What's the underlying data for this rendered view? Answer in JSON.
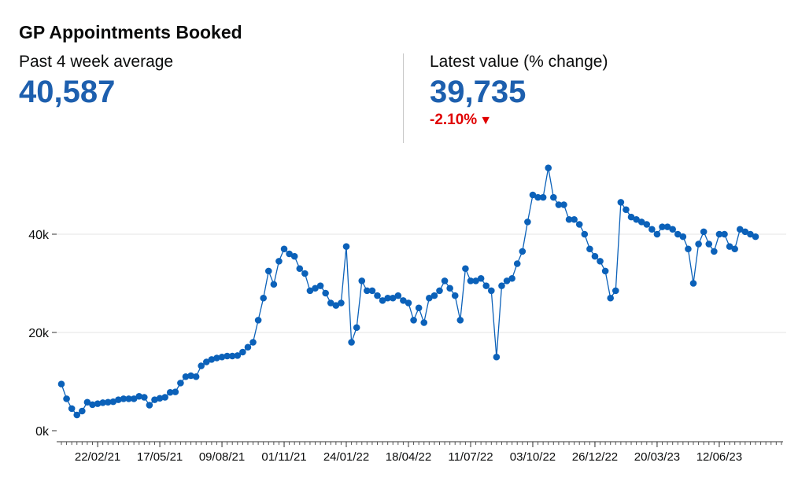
{
  "header": {
    "title": "GP Appointments Booked",
    "avg_label": "Past 4 week average",
    "avg_value": "40,587",
    "latest_label": "Latest value (% change)",
    "latest_value": "39,735",
    "latest_change": "-2.10%",
    "change_arrow": "▼"
  },
  "colors": {
    "accent": "#1d5fae",
    "line": "#0b61b9",
    "negative": "#e00000",
    "grid": "#e6e6e6"
  },
  "chart_data": {
    "type": "line",
    "title": "",
    "xlabel": "",
    "ylabel": "",
    "ylim": [
      0,
      50000
    ],
    "yticks": [
      0,
      20000,
      40000
    ],
    "ytick_labels": [
      "0k",
      "20k",
      "40k"
    ],
    "xtick_labels": [
      "22/02/21",
      "17/05/21",
      "09/08/21",
      "01/11/21",
      "24/01/22",
      "18/04/22",
      "11/07/22",
      "03/10/22",
      "26/12/22",
      "20/03/23",
      "12/06/23"
    ],
    "grid": true,
    "series": [
      {
        "values": [
          9500,
          6500,
          4500,
          3200,
          4000,
          5800,
          5300,
          5500,
          5700,
          5800,
          5900,
          6300,
          6500,
          6500,
          6500,
          7000,
          6800,
          5200,
          6300,
          6600,
          6800,
          7800,
          7900,
          9700,
          11000,
          11200,
          11000,
          13200,
          14000,
          14500,
          14800,
          15000,
          15200,
          15200,
          15300,
          16000,
          17000,
          18000,
          22500,
          27000,
          32500,
          29800,
          34500,
          37000,
          36000,
          35500,
          33000,
          32000,
          28500,
          29000,
          29500,
          28000,
          26000,
          25500,
          26000,
          37500,
          18000,
          21000,
          30500,
          28500,
          28500,
          27500,
          26500,
          27000,
          27000,
          27500,
          26500,
          26000,
          22500,
          25000,
          22000,
          27000,
          27500,
          28500,
          30500,
          29000,
          27500,
          22500,
          33000,
          30500,
          30500,
          31000,
          29500,
          28500,
          15000,
          29500,
          30500,
          31000,
          34000,
          36500,
          42500,
          48000,
          47500,
          47500,
          53500,
          47500,
          46000,
          46000,
          43000,
          43000,
          42000,
          40000,
          37000,
          35500,
          34500,
          32500,
          27000,
          28500,
          46500,
          45000,
          43500,
          43000,
          42500,
          42000,
          41000,
          40000,
          41500,
          41500,
          41000,
          40000,
          39500,
          37000,
          30000,
          38000,
          40500,
          38000,
          36500,
          40000,
          40000,
          37500,
          37000,
          41000,
          40500,
          40000,
          39500
        ]
      }
    ]
  }
}
